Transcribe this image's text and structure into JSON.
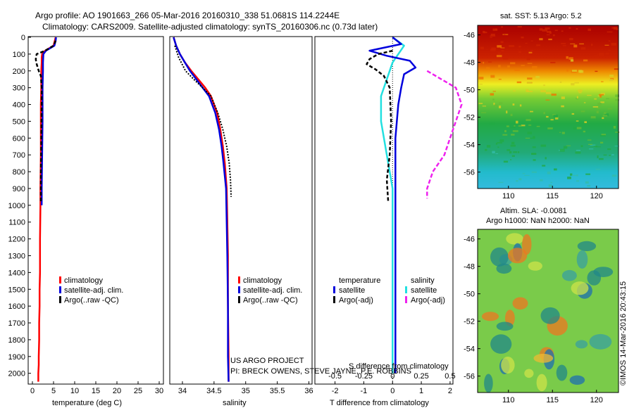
{
  "header": {
    "line1": "Argo profile: AO 1901663_266 05-Mar-2016 20160310_338 51.0681S 114.2244E",
    "line2": "Climatology: CARS2009. Satellite-adjusted climatology: synTS_20160306.nc (0.73d later)"
  },
  "colors": {
    "climatology": "#ff0000",
    "satellite": "#0000dd",
    "argo": "#000000",
    "salinity_satellite": "#22e0e0",
    "salinity_argo": "#ee22ee"
  },
  "chart_data": [
    {
      "type": "line",
      "name": "temperature-panel",
      "xlabel": "temperature (deg C)",
      "xticks": [
        0,
        5,
        10,
        15,
        20,
        25,
        30
      ],
      "xlim": [
        -1,
        31
      ],
      "yticks": [
        0,
        100,
        200,
        300,
        400,
        500,
        600,
        700,
        800,
        900,
        1000,
        1100,
        1200,
        1300,
        1400,
        1500,
        1600,
        1700,
        1800,
        1900,
        2000
      ],
      "ylim": [
        0,
        2060
      ],
      "y_reversed": true,
      "legend": [
        "climatology",
        "satellite-adj. clim.",
        "Argo(..raw -QC)"
      ],
      "series": [
        {
          "name": "climatology",
          "x": [
            5.5,
            5.3,
            5.0,
            3.0,
            2.3,
            2.2,
            2.2,
            2.1,
            2.1,
            2.0,
            2.0,
            2.0,
            1.9,
            1.9,
            1.8,
            1.8,
            1.7,
            1.7,
            1.6,
            1.6,
            1.5,
            1.5,
            1.4,
            1.4
          ],
          "y": [
            0,
            20,
            50,
            80,
            100,
            120,
            150,
            200,
            300,
            400,
            500,
            700,
            900,
            1000,
            1200,
            1400,
            1500,
            1600,
            1700,
            1800,
            1900,
            1950,
            2000,
            2050
          ]
        },
        {
          "name": "satellite-adj. clim.",
          "x": [
            5.6,
            5.5,
            5.2,
            3.2,
            2.6,
            2.5,
            2.5,
            2.4,
            2.4,
            2.4,
            2.3,
            2.2,
            2.2
          ],
          "y": [
            0,
            20,
            50,
            80,
            100,
            150,
            200,
            300,
            400,
            500,
            700,
            900,
            1000
          ]
        },
        {
          "name": "Argo(..raw -QC)",
          "x": [
            5.5,
            5.0,
            3.0,
            1.0,
            0.8,
            0.9,
            1.5,
            2.0,
            2.2,
            2.2,
            2.1,
            2.0,
            2.0,
            2.0
          ],
          "y": [
            20,
            50,
            80,
            100,
            130,
            150,
            200,
            230,
            300,
            400,
            600,
            800,
            900,
            980
          ]
        }
      ]
    },
    {
      "type": "line",
      "name": "salinity-panel",
      "xlabel": "salinity",
      "xticks": [
        34,
        34.5,
        35,
        35.5,
        36
      ],
      "xlim": [
        33.8,
        36.05
      ],
      "ylim": [
        0,
        2060
      ],
      "y_reversed": true,
      "legend": [
        "climatology",
        "satellite-adj. clim.",
        "Argo(..raw -QC)"
      ],
      "series": [
        {
          "name": "climatology",
          "x": [
            33.86,
            33.9,
            33.96,
            34.04,
            34.14,
            34.25,
            34.36,
            34.45,
            34.55,
            34.6,
            34.64,
            34.67,
            34.7,
            34.71,
            34.72,
            34.72,
            34.73,
            34.73
          ],
          "y": [
            0,
            50,
            100,
            150,
            200,
            250,
            300,
            350,
            450,
            550,
            650,
            750,
            900,
            1100,
            1300,
            1600,
            1900,
            2050
          ]
        },
        {
          "name": "satellite-adj. clim.",
          "x": [
            33.86,
            33.9,
            33.96,
            34.04,
            34.12,
            34.22,
            34.32,
            34.42,
            34.52,
            34.58,
            34.62,
            34.65,
            34.69,
            34.7,
            34.71,
            34.72,
            34.72,
            34.73
          ],
          "y": [
            0,
            50,
            100,
            150,
            200,
            250,
            300,
            350,
            450,
            550,
            650,
            750,
            900,
            1100,
            1300,
            1600,
            1900,
            2050
          ]
        },
        {
          "name": "Argo(..raw -QC)",
          "x": [
            33.88,
            33.94,
            34.05,
            34.18,
            34.32,
            34.45,
            34.56,
            34.64,
            34.7,
            34.74,
            34.76,
            34.77
          ],
          "y": [
            50,
            120,
            200,
            250,
            300,
            350,
            450,
            550,
            650,
            750,
            850,
            950
          ]
        }
      ]
    },
    {
      "type": "line",
      "name": "difference-panel",
      "xlabel": "T difference from climatology",
      "xlabel2": "S difference from climatology",
      "xticks": [
        -2,
        -1,
        0,
        1,
        2
      ],
      "xticks_top": [
        -0.5,
        -0.25,
        0,
        0.25,
        0.5
      ],
      "xlim": [
        -2.7,
        2.1
      ],
      "ylim": [
        0,
        2060
      ],
      "y_reversed": true,
      "legend_titles": [
        "temperature",
        "salinity"
      ],
      "legend": [
        "satellite",
        "Argo(-adj)",
        "satellite",
        "Argo(-adj)"
      ],
      "series": [
        {
          "name": "temperature satellite",
          "x": [
            0,
            0.3,
            -0.8,
            -0.2,
            0.6,
            0.8,
            0.4,
            0.3,
            0.2,
            0.1,
            0.1,
            0.1,
            0.1,
            0.1,
            0.1,
            0.1
          ],
          "y": [
            0,
            40,
            80,
            110,
            140,
            180,
            220,
            300,
            400,
            600,
            800,
            1000,
            1300,
            1600,
            1900,
            2000
          ]
        },
        {
          "name": "temperature Argo(-adj)",
          "x": [
            0,
            -0.5,
            -0.8,
            -0.9,
            -0.6,
            -0.3,
            -0.1,
            -0.05,
            -0.1,
            -0.2,
            -0.15
          ],
          "y": [
            80,
            100,
            130,
            160,
            190,
            230,
            300,
            500,
            700,
            850,
            980
          ]
        },
        {
          "name": "salinity satellite",
          "x": [
            0,
            0.1,
            0,
            -0.05,
            -0.1,
            -0.1,
            -0.05,
            0,
            0,
            0,
            0,
            0
          ],
          "y": [
            0,
            50,
            150,
            250,
            350,
            500,
            700,
            900,
            1200,
            1500,
            1800,
            2000
          ]
        },
        {
          "name": "salinity Argo(-adj)",
          "x": [
            0.3,
            0.55,
            0.6,
            0.55,
            0.5,
            0.45,
            0.35,
            0.3,
            0.3
          ],
          "y": [
            200,
            300,
            400,
            500,
            600,
            700,
            800,
            900,
            960
          ]
        }
      ]
    },
    {
      "type": "heatmap",
      "name": "sst-map",
      "title": "sat. SST: 5.13 Argo: 5.2",
      "xticks": [
        110,
        115,
        120
      ],
      "yticks": [
        -46,
        -48,
        -50,
        -52,
        -54,
        -56
      ],
      "xlim": [
        106.5,
        122.5
      ],
      "ylim": [
        -57.2,
        -45.3
      ]
    },
    {
      "type": "heatmap",
      "name": "sla-map",
      "title": "Altim. SLA: -0.0081",
      "subtitle": "Argo h1000: NaN h2000: NaN",
      "xticks": [
        110,
        115,
        120
      ],
      "yticks": [
        -46,
        -48,
        -50,
        -52,
        -54,
        -56
      ],
      "xlim": [
        106.5,
        122.5
      ],
      "ylim": [
        -57.2,
        -45.3
      ]
    }
  ],
  "annotations": {
    "project": "US ARGO PROJECT",
    "pi": "PI: BRECK OWENS, STEVE JAYNE, P.E. ROBBINS",
    "watermark": "©IMOS 14-Mar-2016 20:43:15"
  }
}
